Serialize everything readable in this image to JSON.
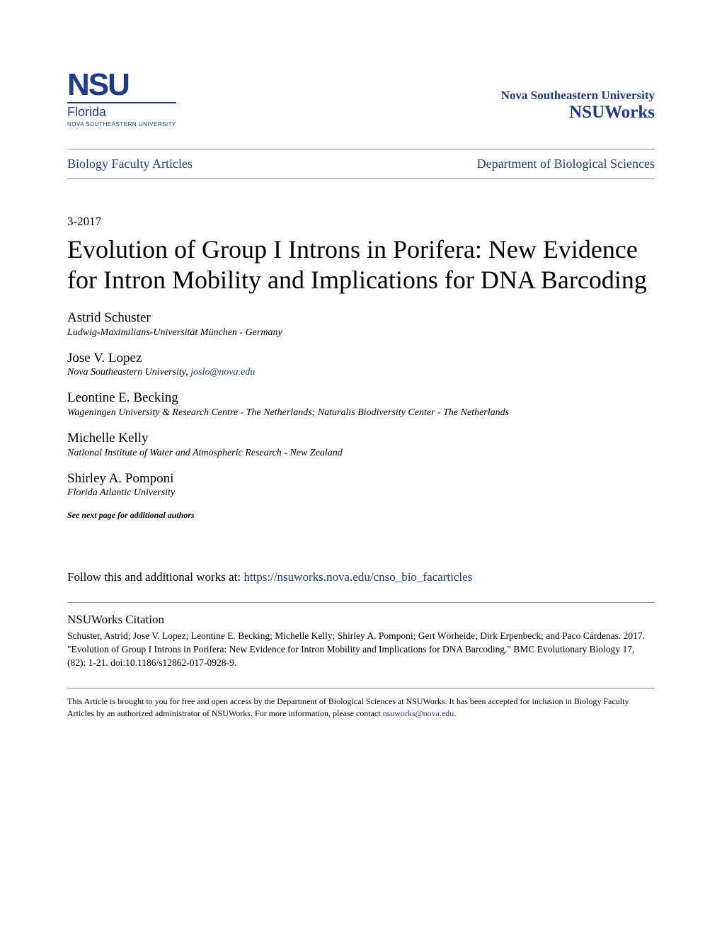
{
  "header": {
    "logo_main": "NSU",
    "logo_region": "Florida",
    "logo_sub": "NOVA SOUTHEASTERN UNIVERSITY",
    "univ_name": "Nova Southeastern University",
    "repo_name": "NSUWorks"
  },
  "breadcrumb": {
    "left": "Biology Faculty Articles",
    "right": "Department of Biological Sciences"
  },
  "date": "3-2017",
  "title": "Evolution of Group I Introns in Porifera: New Evidence for Intron Mobility and Implications for DNA Barcoding",
  "authors": [
    {
      "name": "Astrid Schuster",
      "affil": "Ludwig-Maximilians-Universität München - Germany",
      "email": null
    },
    {
      "name": "Jose V. Lopez",
      "affil": "Nova Southeastern University",
      "email": "joslo@nova.edu"
    },
    {
      "name": "Leontine E. Becking",
      "affil": "Wageningen University & Research Centre - The Netherlands; Naturalis Biodiversity Center - The Netherlands",
      "email": null
    },
    {
      "name": "Michelle Kelly",
      "affil": "National Institute of Water and Atmospheric Research - New Zealand",
      "email": null
    },
    {
      "name": "Shirley A. Pomponi",
      "affil": "Florida Atlantic University",
      "email": null
    }
  ],
  "see_next": "See next page for additional authors",
  "follow": {
    "prefix": "Follow this and additional works at: ",
    "url": "https://nsuworks.nova.edu/cnso_bio_facarticles"
  },
  "citation": {
    "heading": "NSUWorks Citation",
    "text": "Schuster, Astrid; Jose V. Lopez; Leontine E. Becking; Michelle Kelly; Shirley A. Pomponi; Gert Wörheide; Dirk Erpenbeck; and Paco Cárdenas. 2017. \"Evolution of Group I Introns in Porifera: New Evidence for Intron Mobility and Implications for DNA Barcoding.\" BMC Evolutionary Biology 17, (82): 1-21. doi:10.1186/s12862-017-0928-9."
  },
  "footer": {
    "text_before": "This Article is brought to you for free and open access by the Department of Biological Sciences at NSUWorks. It has been accepted for inclusion in Biology Faculty Articles by an authorized administrator of NSUWorks. For more information, please contact ",
    "email": "nsuworks@nova.edu",
    "text_after": "."
  },
  "colors": {
    "link": "#1e3a8a",
    "text": "#000000",
    "rule": "#888888",
    "background": "#ffffff"
  }
}
